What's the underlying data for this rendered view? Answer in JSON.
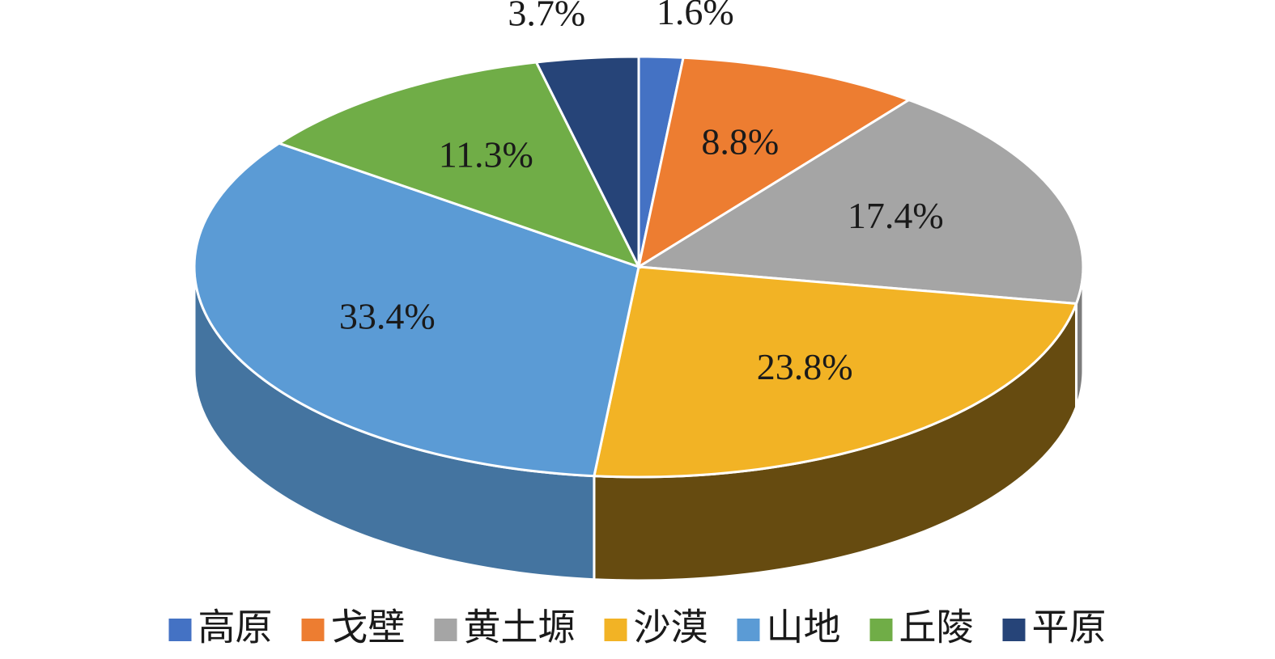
{
  "chart_data": {
    "type": "pie",
    "categories": [
      "高原",
      "戈壁",
      "黄土塬",
      "沙漠",
      "山地",
      "丘陵",
      "平原"
    ],
    "values": [
      1.6,
      8.8,
      17.4,
      23.8,
      33.4,
      11.3,
      3.7
    ],
    "value_labels": [
      "1.6%",
      "8.8%",
      "17.4%",
      "23.8%",
      "33.4%",
      "11.3%",
      "3.7%"
    ],
    "colors": [
      "#4472c4",
      "#ed7d31",
      "#a5a5a5",
      "#f2b325",
      "#5b9bd5",
      "#70ad47",
      "#264478"
    ],
    "legend": "bottom"
  }
}
